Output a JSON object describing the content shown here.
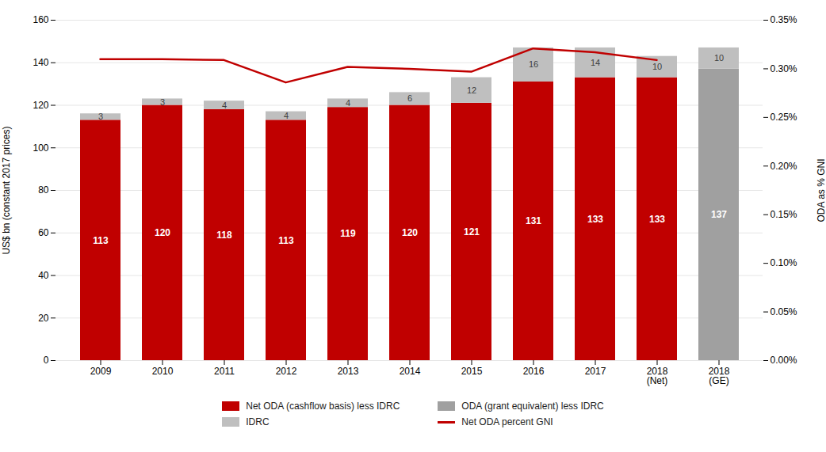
{
  "chart_data": {
    "type": "bar",
    "stacked": true,
    "data_labels": true,
    "grid": true,
    "legend": "bottom",
    "categories": [
      "2009",
      "2010",
      "2011",
      "2012",
      "2013",
      "2014",
      "2015",
      "2016",
      "2017",
      "2018\n(Net)",
      "2018\n(GE)"
    ],
    "ylabel": "US$ bn (constant 2017 prices)",
    "y2label": "ODA as % GNI",
    "ylim": [
      0,
      160
    ],
    "yticks": [
      0,
      20,
      40,
      60,
      80,
      100,
      120,
      140,
      160
    ],
    "y2lim": [
      0,
      0.35
    ],
    "y2ticks": [
      {
        "value": 0,
        "label": "0.00%"
      },
      {
        "value": 0.05,
        "label": "0.05%"
      },
      {
        "value": 0.1,
        "label": "0.10%"
      },
      {
        "value": 0.15,
        "label": "0.15%"
      },
      {
        "value": 0.2,
        "label": "0.20%"
      },
      {
        "value": 0.25,
        "label": "0.25%"
      },
      {
        "value": 0.3,
        "label": "0.30%"
      },
      {
        "value": 0.35,
        "label": "0.35%"
      }
    ],
    "series": [
      {
        "name": "Net ODA (cashflow basis) less IDRC",
        "type": "bar",
        "color": "#C00000",
        "values": [
          113,
          120,
          118,
          113,
          119,
          120,
          121,
          131,
          133,
          133,
          null
        ]
      },
      {
        "name": "ODA (grant equivalent) less IDRC",
        "type": "bar",
        "color": "#A0A0A0",
        "values": [
          null,
          null,
          null,
          null,
          null,
          null,
          null,
          null,
          null,
          null,
          137
        ]
      },
      {
        "name": "IDRC",
        "type": "bar",
        "color": "#BFBFBF",
        "values": [
          3,
          3,
          4,
          4,
          4,
          6,
          12,
          16,
          14,
          10,
          10
        ]
      },
      {
        "name": "Net ODA percent GNI",
        "type": "line",
        "axis": "y2",
        "color": "#C00000",
        "values": [
          0.31,
          0.31,
          0.309,
          0.286,
          0.302,
          0.3,
          0.297,
          0.321,
          0.317,
          0.309,
          null
        ]
      }
    ]
  }
}
